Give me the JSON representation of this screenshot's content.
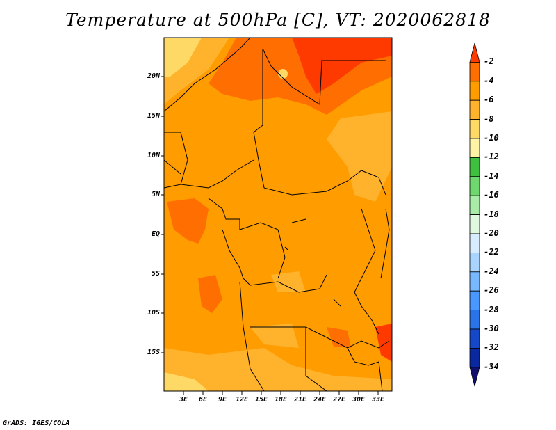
{
  "title": "Temperature at 500hPa [C], VT: 2020062818",
  "credit": "GrADS: IGES/COLA",
  "map": {
    "variable": "Temperature",
    "level": "500hPa",
    "units": "C",
    "valid_time": "2020062818",
    "lon_labels": [
      "3E",
      "6E",
      "9E",
      "12E",
      "15E",
      "18E",
      "21E",
      "24E",
      "27E",
      "30E",
      "33E"
    ],
    "lat_labels": [
      "20N",
      "15N",
      "10N",
      "5N",
      "EQ",
      "5S",
      "10S",
      "15S"
    ]
  },
  "colorbar": {
    "labels": [
      "-2",
      "-4",
      "-6",
      "-8",
      "-10",
      "-12",
      "-14",
      "-16",
      "-18",
      "-20",
      "-22",
      "-24",
      "-26",
      "-28",
      "-30",
      "-32",
      "-34"
    ],
    "colors": [
      "#ff3a00",
      "#ff6e00",
      "#ff9c00",
      "#ffb22c",
      "#ffd966",
      "#fff4a6",
      "#40c040",
      "#6ed86e",
      "#a8eca8",
      "#e0f8e0",
      "#d8ecff",
      "#a8d4ff",
      "#78b8ff",
      "#4898ff",
      "#2874e8",
      "#1448c8",
      "#0a28a0",
      "#101070"
    ]
  },
  "chart_data": {
    "type": "heatmap",
    "title": "Temperature at 500hPa [C], VT: 2020062818",
    "x_ticks": [
      "3E",
      "6E",
      "9E",
      "12E",
      "15E",
      "18E",
      "21E",
      "24E",
      "27E",
      "30E",
      "33E"
    ],
    "y_ticks": [
      "20N",
      "15N",
      "10N",
      "5N",
      "EQ",
      "5S",
      "10S",
      "15S"
    ],
    "color_levels": [
      -2,
      -4,
      -6,
      -8,
      -10,
      -12,
      -14,
      -16,
      -18,
      -20,
      -22,
      -24,
      -26,
      -28,
      -30,
      -32,
      -34
    ],
    "dominant_range": "-4 to -8"
  }
}
